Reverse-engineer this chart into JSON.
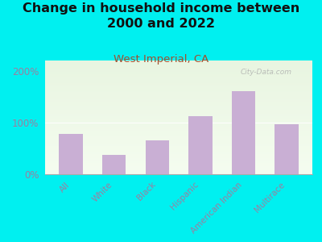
{
  "title": "Change in household income between\n2000 and 2022",
  "subtitle": "West Imperial, CA",
  "categories": [
    "All",
    "White",
    "Black",
    "Hispanic",
    "American Indian",
    "Multirace"
  ],
  "values": [
    78,
    38,
    65,
    113,
    160,
    96
  ],
  "bar_color": "#c9afd4",
  "background_outer": "#00f0f0",
  "title_fontsize": 11.5,
  "subtitle_fontsize": 9.5,
  "subtitle_color": "#a05030",
  "tick_label_color": "#9b7fa0",
  "ytick_labels": [
    "0%",
    "100%",
    "200%"
  ],
  "ytick_values": [
    0,
    100,
    200
  ],
  "ylim": [
    0,
    220
  ],
  "watermark": "City-Data.com"
}
